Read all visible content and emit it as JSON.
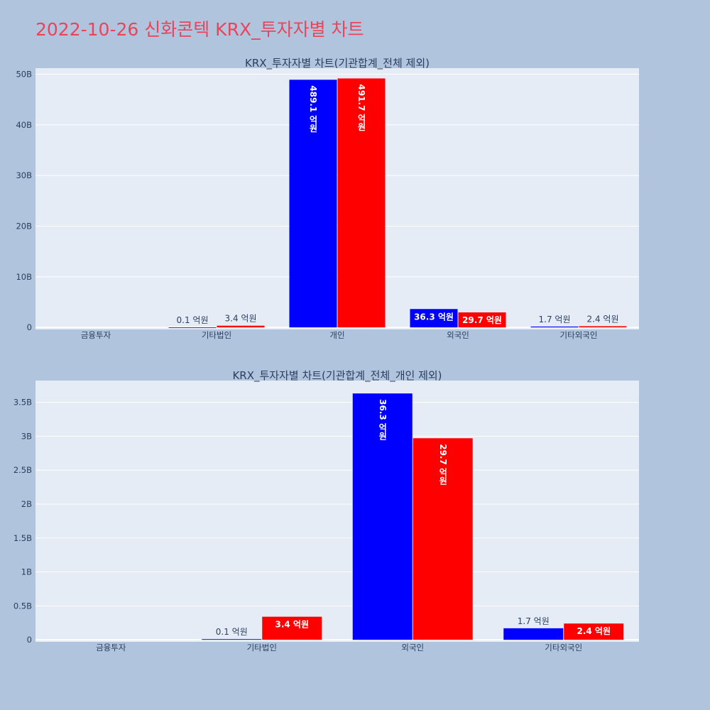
{
  "title": "2022-10-26 신화콘텍 KRX_투자자별 차트",
  "colors": {
    "series_a": "#0000ff",
    "series_b": "#ff0000",
    "plot_bg": "#e5ecf6",
    "page_bg": "#b0c4de"
  },
  "chart_data": [
    {
      "type": "bar",
      "title": "KRX_투자자별 차트(기관합계_전체 제외)",
      "categories": [
        "금융투자",
        "기타법인",
        "개인",
        "외국인",
        "기타외국인"
      ],
      "ylim": [
        -0.4,
        51.2
      ],
      "yticks": [
        0,
        10,
        20,
        30,
        40,
        50
      ],
      "ytick_labels": [
        "0",
        "10B",
        "20B",
        "30B",
        "40B",
        "50B"
      ],
      "grid": true,
      "series": [
        {
          "values": [
            0,
            0.01,
            48.91,
            3.63,
            0.17
          ],
          "labels": [
            "",
            "0.1 억원",
            "489.1 억원",
            "36.3 억원",
            "1.7 억원"
          ]
        },
        {
          "values": [
            0,
            0.34,
            49.17,
            2.97,
            0.24
          ],
          "labels": [
            "",
            "3.4 억원",
            "491.7 억원",
            "29.7 억원",
            "2.4 억원"
          ]
        }
      ]
    },
    {
      "type": "bar",
      "title": "KRX_투자자별 차트(기관합계_전체_개인 제외)",
      "categories": [
        "금융투자",
        "기타법인",
        "외국인",
        "기타외국인"
      ],
      "ylim": [
        -0.03,
        3.82
      ],
      "yticks": [
        0,
        0.5,
        1,
        1.5,
        2,
        2.5,
        3,
        3.5
      ],
      "ytick_labels": [
        "0",
        "0.5B",
        "1B",
        "1.5B",
        "2B",
        "2.5B",
        "3B",
        "3.5B"
      ],
      "grid": true,
      "series": [
        {
          "values": [
            0,
            0.01,
            3.63,
            0.17
          ],
          "labels": [
            "",
            "0.1 억원",
            "36.3 억원",
            "1.7 억원"
          ]
        },
        {
          "values": [
            0,
            0.34,
            2.97,
            0.24
          ],
          "labels": [
            "",
            "3.4 억원",
            "29.7 억원",
            "2.4 억원"
          ]
        }
      ]
    }
  ]
}
